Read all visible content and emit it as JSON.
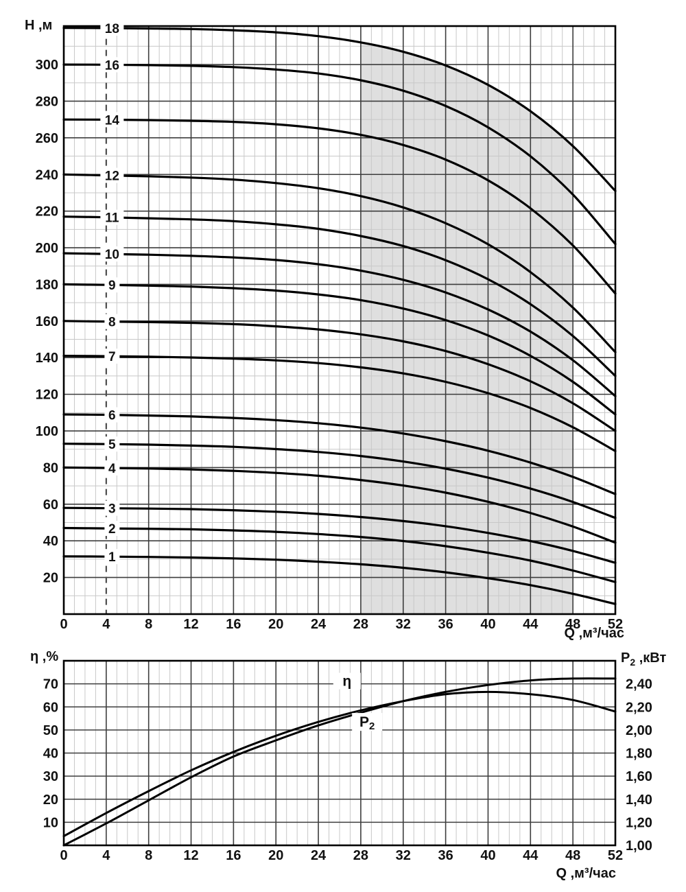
{
  "colors": {
    "background": "#ffffff",
    "curve": "#000000",
    "major_grid": "#3d3d3d",
    "minor_grid": "#c8c8c8",
    "border": "#000000",
    "shaded_region": "#dfdfdf",
    "dashed_line": "#4d4d4d",
    "text": "#111111"
  },
  "chart_data": [
    {
      "id": "head-flow-curves",
      "type": "line",
      "title": "",
      "ylabel": "Н ,м",
      "xlabel": "Q ,м³/час",
      "xlim": [
        0,
        52
      ],
      "ylim": [
        0,
        321
      ],
      "grid": "on",
      "x_major_step": 4,
      "x_minor_step": 1,
      "y_major_step": 20,
      "y_minor_step": 10,
      "x_ticks": [
        0,
        4,
        8,
        12,
        16,
        20,
        24,
        28,
        32,
        36,
        40,
        44,
        48,
        52
      ],
      "y_ticks": [
        20,
        40,
        60,
        80,
        100,
        120,
        140,
        160,
        180,
        200,
        220,
        240,
        260,
        280,
        300
      ],
      "x": [
        0,
        4,
        8,
        12,
        16,
        20,
        24,
        28,
        32,
        36,
        40,
        44,
        48,
        52
      ],
      "label_q": 4.55,
      "legend_position": "labels-on-curves",
      "series": [
        {
          "name": "1",
          "values": [
            31.5,
            31.4,
            31.2,
            30.9,
            30.4,
            29.7,
            28.6,
            27.2,
            25.3,
            22.8,
            19.6,
            15.8,
            11.1,
            5.5
          ]
        },
        {
          "name": "2",
          "values": [
            47,
            46.8,
            46.6,
            46.3,
            45.7,
            44.9,
            43.7,
            42.1,
            39.9,
            37.1,
            33.5,
            29.2,
            23.8,
            17.5
          ]
        },
        {
          "name": "3",
          "values": [
            58,
            57.8,
            57.6,
            57.3,
            56.7,
            55.9,
            54.7,
            53,
            50.8,
            48,
            44.3,
            39.9,
            34.5,
            28
          ]
        },
        {
          "name": "4",
          "values": [
            80,
            79.8,
            79.5,
            79,
            78.2,
            77.1,
            75.5,
            73.2,
            70.2,
            66.3,
            61.3,
            55.2,
            47.8,
            39
          ]
        },
        {
          "name": "5",
          "values": [
            93,
            92.8,
            92.5,
            92,
            91.3,
            90.1,
            88.5,
            86.3,
            83.3,
            79.4,
            74.5,
            68.5,
            61.2,
            52.5
          ]
        },
        {
          "name": "6",
          "values": [
            109,
            108.8,
            108.4,
            107.9,
            107.1,
            105.9,
            104.2,
            101.8,
            98.6,
            94.4,
            89.2,
            82.7,
            74.9,
            65.5
          ]
        },
        {
          "name": "7",
          "values": [
            141,
            140.8,
            140.5,
            140.1,
            139.5,
            138.5,
            137,
            134.7,
            131.4,
            126.8,
            120.6,
            112.5,
            102,
            89
          ]
        },
        {
          "name": "8",
          "values": [
            160,
            159.7,
            159.4,
            159,
            158.3,
            157.1,
            155.4,
            152.7,
            148.9,
            143.6,
            136.4,
            127.1,
            115.1,
            100
          ]
        },
        {
          "name": "9",
          "values": [
            180,
            179.7,
            179.3,
            178.8,
            177.9,
            176.6,
            174.5,
            171.4,
            166.8,
            160.5,
            152.1,
            141,
            126.8,
            109
          ]
        },
        {
          "name": "10",
          "values": [
            197,
            196.6,
            196.2,
            195.6,
            194.7,
            193.3,
            191,
            187.5,
            182.5,
            175.6,
            166.3,
            154.2,
            138.6,
            119
          ]
        },
        {
          "name": "11",
          "values": [
            217,
            216.6,
            216.1,
            215.5,
            214.5,
            212.8,
            210.3,
            206.4,
            200.9,
            193.2,
            182.8,
            169.2,
            151.8,
            130
          ]
        },
        {
          "name": "12",
          "values": [
            240,
            239.5,
            239,
            238.3,
            237.2,
            235.3,
            232.5,
            228.2,
            222,
            213.4,
            201.9,
            186.7,
            167.3,
            143
          ]
        },
        {
          "name": "14",
          "values": [
            270,
            269.9,
            269.7,
            269.3,
            268.7,
            267.4,
            265.2,
            261.6,
            256.1,
            248.1,
            236.8,
            221.5,
            201.2,
            175
          ]
        },
        {
          "name": "16",
          "values": [
            300,
            299.9,
            299.7,
            299.3,
            298.6,
            297.3,
            295.1,
            291.4,
            285.7,
            277.4,
            265.7,
            249.9,
            229,
            202
          ]
        },
        {
          "name": "18",
          "values": [
            320,
            319.9,
            319.7,
            319.4,
            318.7,
            317.6,
            315.5,
            312.1,
            307,
            299.5,
            288.9,
            274.5,
            255.5,
            231
          ]
        }
      ],
      "recommended_range": {
        "q_start": 28,
        "q_end": 48
      },
      "min_flow_dashed_line_q": 4
    },
    {
      "id": "efficiency-and-power",
      "type": "line",
      "title": "",
      "xlabel": "Q ,м³/час",
      "ylabel_left": "η ,%",
      "ylabel_right": {
        "base": "P",
        "sub": "2",
        "rest": " ,кВт"
      },
      "xlim": [
        0,
        52
      ],
      "ylim_left": [
        0,
        80
      ],
      "ylim_right": [
        1.0,
        2.6
      ],
      "grid": "on",
      "x_major_step": 4,
      "x_minor_step": 1,
      "y_major_step_left": 10,
      "x_ticks": [
        0,
        4,
        8,
        12,
        16,
        20,
        24,
        28,
        32,
        36,
        40,
        44,
        48,
        52
      ],
      "y_ticks_left": [
        10,
        20,
        30,
        40,
        50,
        60,
        70
      ],
      "y_ticks_right": [
        "2,40",
        "2,20",
        "2,00",
        "1,80",
        "1,60",
        "1,40",
        "1,20",
        "1,00"
      ],
      "y_ticks_right_values": [
        2.4,
        2.2,
        2.0,
        1.8,
        1.6,
        1.4,
        1.2,
        1.0
      ],
      "x": [
        0,
        4,
        8,
        12,
        16,
        20,
        24,
        28,
        32,
        36,
        40,
        44,
        48,
        52
      ],
      "series": [
        {
          "name": "η",
          "axis": "left",
          "values": [
            0,
            9.5,
            19.5,
            29.5,
            38.5,
            45.5,
            52,
            57.5,
            62.5,
            66.5,
            69.5,
            71.5,
            72.3,
            72.3
          ]
        },
        {
          "name": "P2",
          "axis": "right",
          "values": [
            1.08,
            1.28,
            1.47,
            1.65,
            1.81,
            1.95,
            2.07,
            2.17,
            2.25,
            2.31,
            2.33,
            2.31,
            2.26,
            2.16
          ]
        }
      ],
      "curve_labels": [
        {
          "base": "η",
          "sub": "",
          "q": 26.7,
          "u": 71.2,
          "w": 40,
          "h": 24
        },
        {
          "base": "P",
          "sub": "2",
          "q": 28.6,
          "u": 53.5,
          "w": 44,
          "h": 26
        }
      ]
    }
  ]
}
